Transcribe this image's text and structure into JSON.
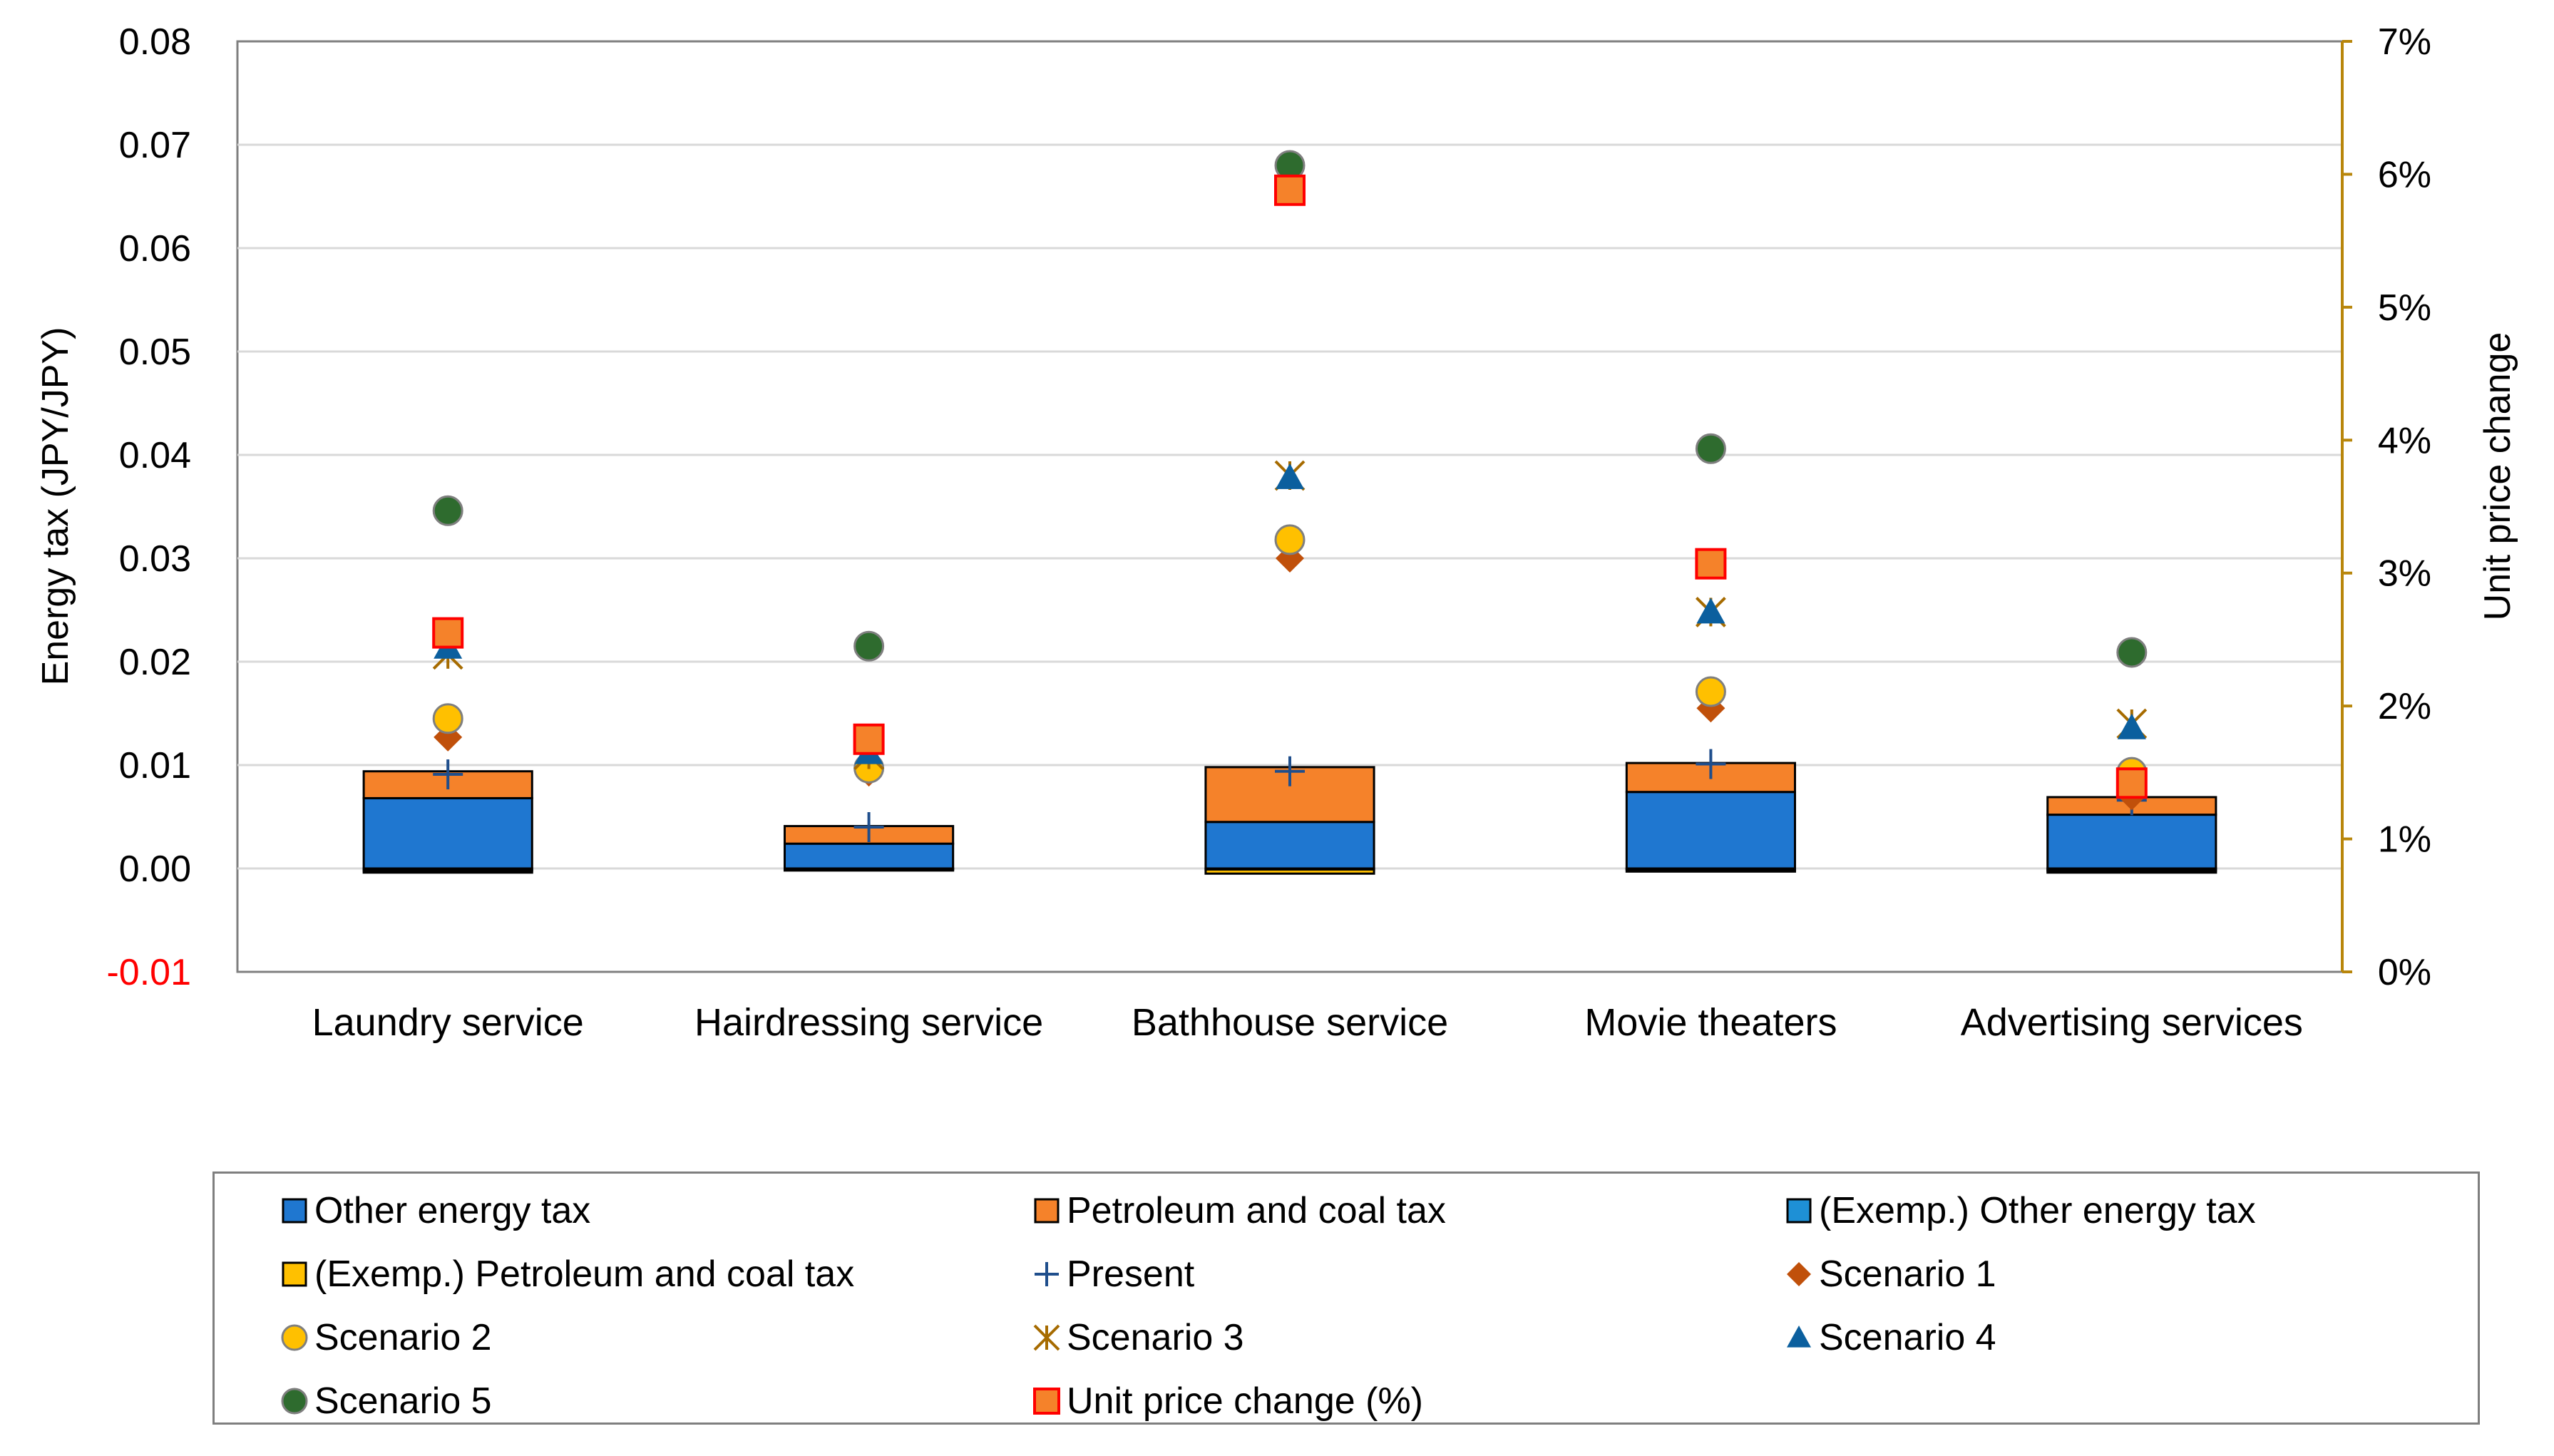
{
  "chart_data": {
    "type": "bar",
    "stacked": true,
    "categories": [
      "Laundry service",
      "Hairdressing service",
      "Bathhouse service",
      "Movie theaters",
      "Advertising services"
    ],
    "y_left": {
      "label": "Energy tax (JPY/JPY)",
      "range": [
        -0.01,
        0.08
      ],
      "ticks": [
        "0.08",
        "0.07",
        "0.06",
        "0.05",
        "0.04",
        "0.03",
        "0.02",
        "0.01",
        "0.00",
        "-0.01"
      ],
      "negative_tick_color": "#ff0000"
    },
    "y_right": {
      "label": "Unit price change",
      "range": [
        0,
        7
      ],
      "unit": "%",
      "ticks": [
        "7%",
        "6%",
        "5%",
        "4%",
        "3%",
        "2%",
        "1%",
        "0%"
      ],
      "axis_color": "#b8860b"
    },
    "grid": true,
    "legend_position": "bottom",
    "bar_series": [
      {
        "name": "Other energy tax",
        "color": "#1f77d0",
        "values": [
          0.0068,
          0.0024,
          0.0045,
          0.0074,
          0.0052
        ]
      },
      {
        "name": "Petroleum and coal tax",
        "color": "#f5822a",
        "values": [
          0.0026,
          0.0017,
          0.0053,
          0.0028,
          0.0017
        ]
      },
      {
        "name": "(Exemp.) Other energy tax",
        "color": "#1e90d6",
        "values": [
          -0.0002,
          -0.0001,
          -0.0001,
          -0.0001,
          -0.0002
        ]
      },
      {
        "name": "(Exemp.) Petroleum and coal tax",
        "color": "#ffc000",
        "values": [
          -0.0002,
          -0.0001,
          -0.0004,
          -0.0002,
          -0.0002
        ]
      }
    ],
    "point_series": [
      {
        "name": "Present",
        "marker": "plus",
        "color": "#1f4e8c",
        "axis": "left",
        "values": [
          0.0091,
          0.004,
          0.0094,
          0.0101,
          0.0066
        ]
      },
      {
        "name": "Scenario 1",
        "marker": "diamond",
        "color": "#c0500a",
        "axis": "left",
        "values": [
          0.0127,
          0.0093,
          0.03,
          0.0155,
          0.007
        ]
      },
      {
        "name": "Scenario 2",
        "marker": "circle",
        "color": "#ffc000",
        "axis": "left",
        "values": [
          0.0145,
          0.0097,
          0.0318,
          0.0171,
          0.0093
        ]
      },
      {
        "name": "Scenario 3",
        "marker": "asterisk",
        "color": "#a66b00",
        "axis": "left",
        "values": [
          0.0207,
          0.011,
          0.038,
          0.0248,
          0.014
        ]
      },
      {
        "name": "Scenario 4",
        "marker": "triangle",
        "color": "#0b5f9e",
        "axis": "left",
        "values": [
          0.0214,
          0.0112,
          0.0378,
          0.0248,
          0.0136
        ]
      },
      {
        "name": "Scenario 5",
        "marker": "circle",
        "color": "#2e6b2e",
        "axis": "left",
        "values": [
          0.0346,
          0.0215,
          0.068,
          0.0406,
          0.0209
        ]
      },
      {
        "name": "Unit price change (%)",
        "marker": "square",
        "color": "#ff0000",
        "axis": "right",
        "values": [
          2.55,
          1.75,
          5.88,
          3.07,
          1.42
        ]
      }
    ]
  },
  "legend": {
    "items": [
      {
        "label": "Other energy tax",
        "swatch": "bar",
        "color": "#1f77d0"
      },
      {
        "label": "Petroleum and coal tax",
        "swatch": "bar",
        "color": "#f5822a"
      },
      {
        "label": "(Exemp.) Other energy tax",
        "swatch": "bar",
        "color": "#1e90d6"
      },
      {
        "label": "(Exemp.) Petroleum and coal tax",
        "swatch": "bar",
        "color": "#ffc000"
      },
      {
        "label": "Present",
        "swatch": "plus",
        "color": "#1f4e8c"
      },
      {
        "label": "Scenario 1",
        "swatch": "diamond",
        "color": "#c0500a"
      },
      {
        "label": "Scenario 2",
        "swatch": "circle",
        "color": "#ffc000"
      },
      {
        "label": "Scenario 3",
        "swatch": "asterisk",
        "color": "#a66b00"
      },
      {
        "label": "Scenario 4",
        "swatch": "triangle",
        "color": "#0b5f9e"
      },
      {
        "label": "Scenario 5",
        "swatch": "circle",
        "color": "#2e6b2e"
      },
      {
        "label": "Unit price change (%)",
        "swatch": "square",
        "color": "#ff0000"
      }
    ]
  }
}
